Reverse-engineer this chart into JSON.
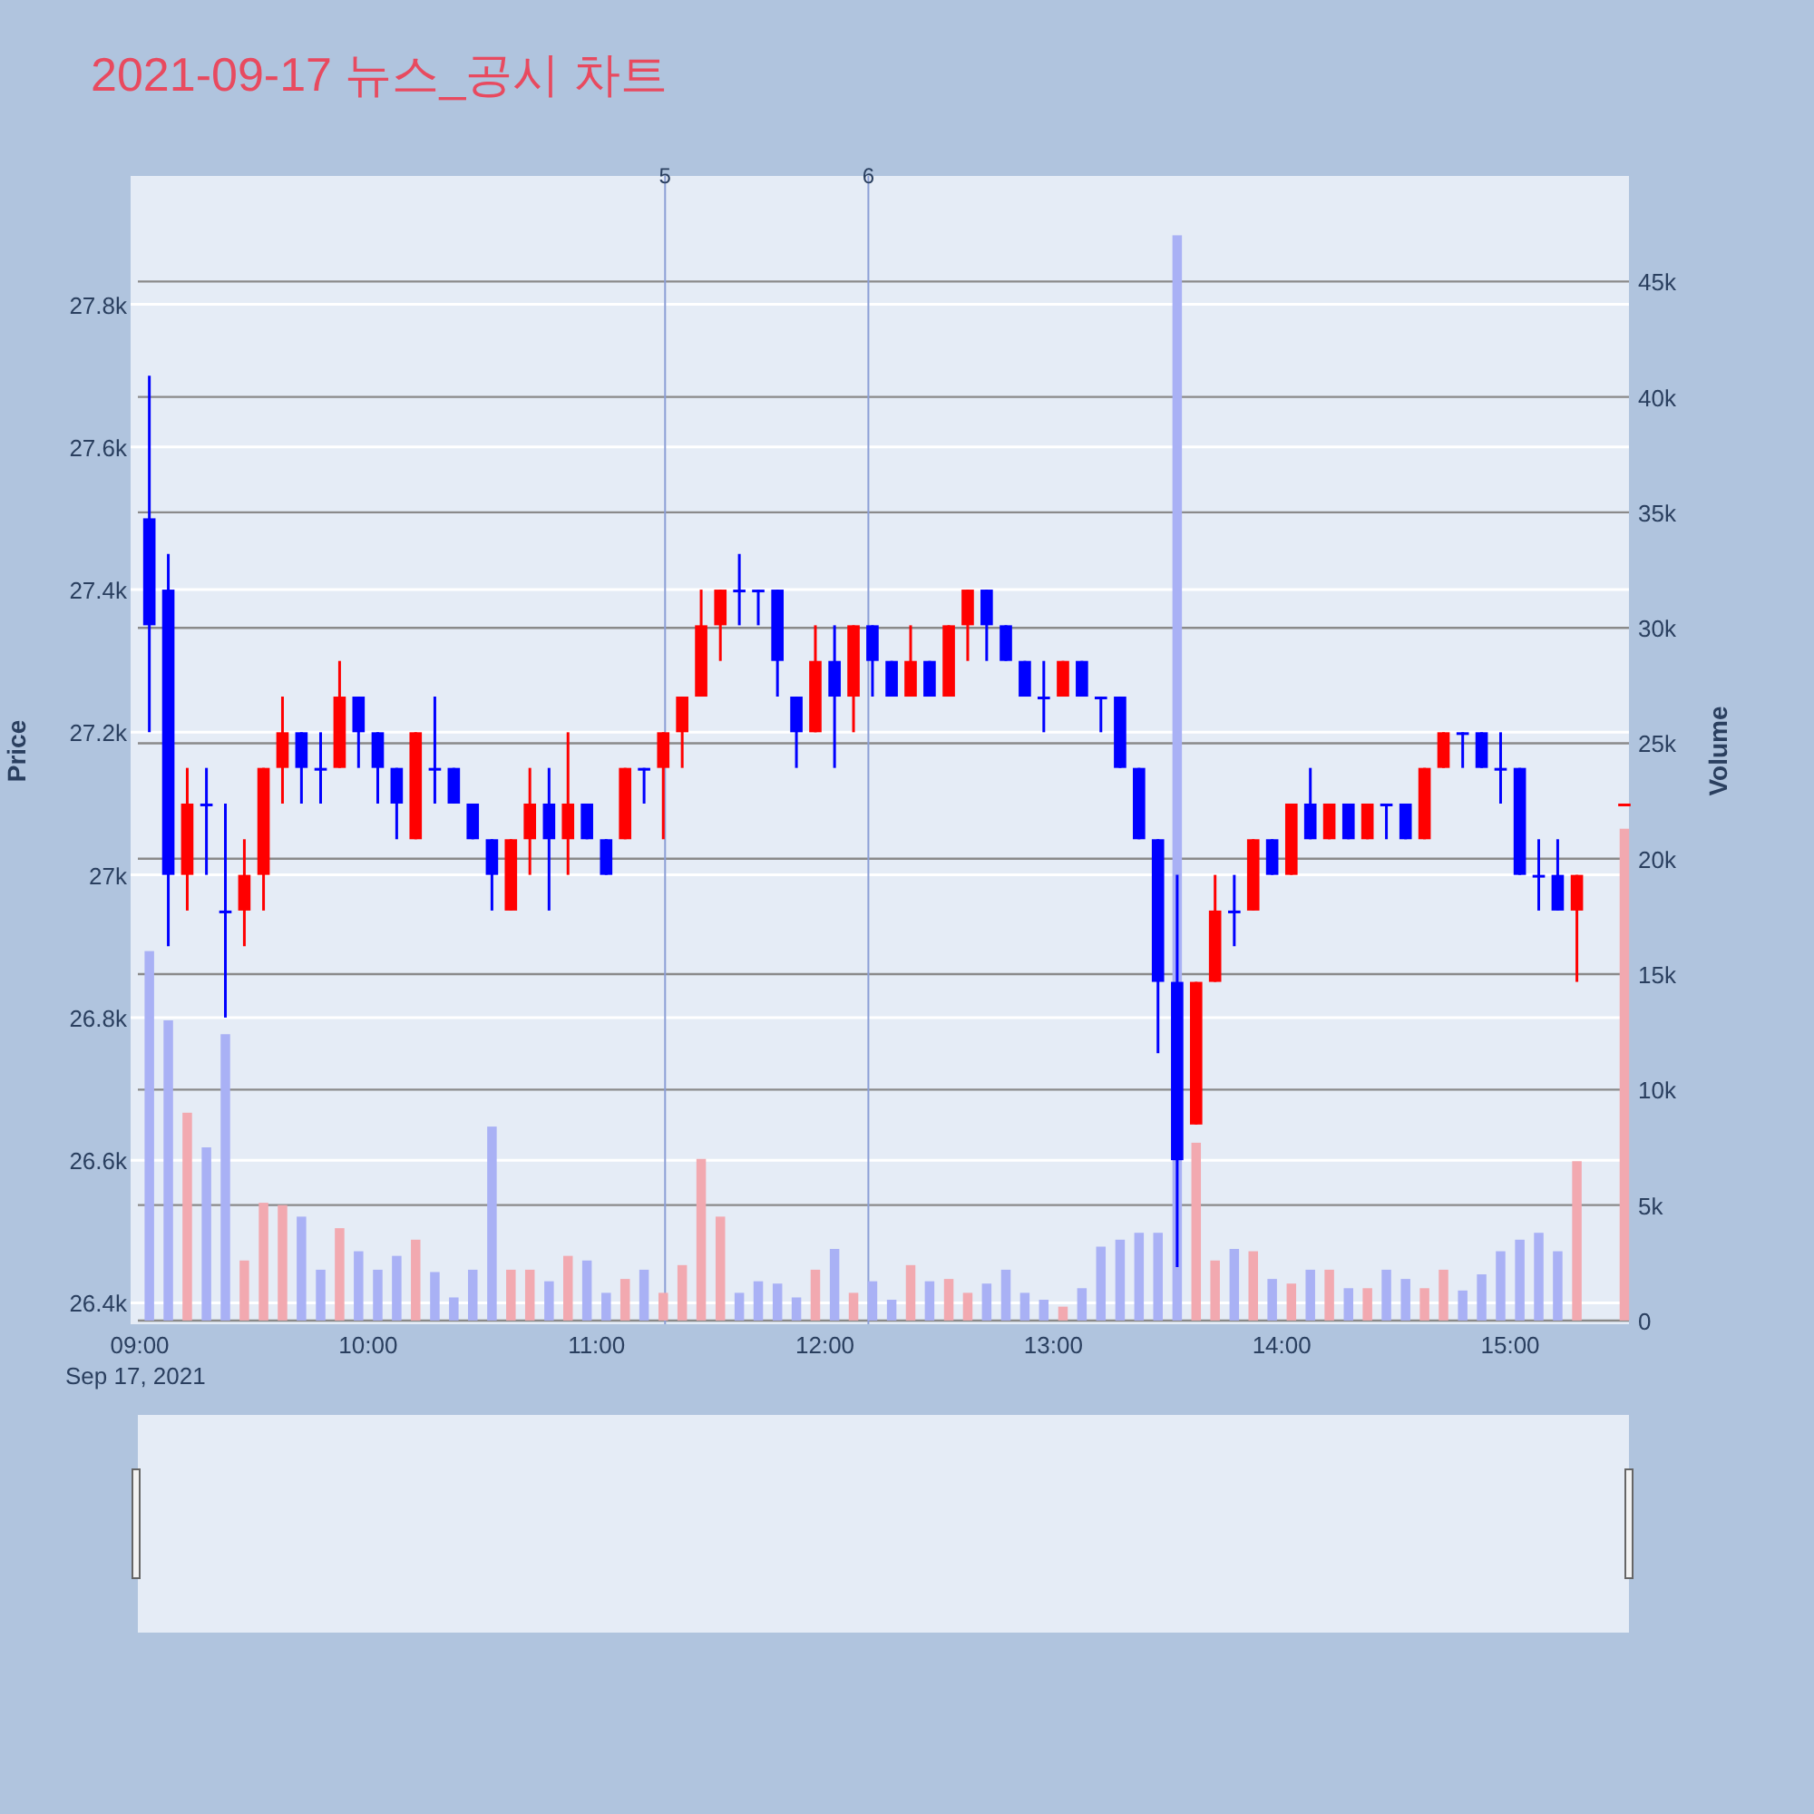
{
  "chart_data": {
    "type": "candlestick",
    "title": "2021-09-17 뉴스_공시 차트",
    "ylabel": "Price",
    "y2label": "Volume",
    "annotations": [
      "Sep 17, 2021",
      {
        "text": "5",
        "x": 11.3
      },
      {
        "text": "6",
        "x": 12.19
      }
    ],
    "x": [
      9.042,
      9.125,
      9.208,
      9.292,
      9.375,
      9.458,
      9.542,
      9.625,
      9.708,
      9.792,
      9.875,
      9.958,
      10.042,
      10.125,
      10.208,
      10.292,
      10.375,
      10.458,
      10.542,
      10.625,
      10.708,
      10.792,
      10.875,
      10.958,
      11.042,
      11.125,
      11.208,
      11.292,
      11.375,
      11.458,
      11.542,
      11.625,
      11.708,
      11.792,
      11.875,
      11.958,
      12.042,
      12.125,
      12.208,
      12.292,
      12.375,
      12.458,
      12.542,
      12.625,
      12.708,
      12.792,
      12.875,
      12.958,
      13.042,
      13.125,
      13.208,
      13.292,
      13.375,
      13.458,
      13.542,
      13.625,
      13.708,
      13.792,
      13.875,
      13.958,
      14.042,
      14.125,
      14.208,
      14.292,
      14.375,
      14.458,
      14.542,
      14.625,
      14.708,
      14.792,
      14.875,
      14.958,
      15.042,
      15.125,
      15.208,
      15.292,
      15.5
    ],
    "ohlc": [
      [
        27500,
        27700,
        27200,
        27350
      ],
      [
        27400,
        27450,
        26900,
        27000
      ],
      [
        27000,
        27150,
        26950,
        27100
      ],
      [
        27100,
        27150,
        27000,
        27100
      ],
      [
        26950,
        27100,
        26800,
        26950
      ],
      [
        26950,
        27050,
        26900,
        27000
      ],
      [
        27000,
        27150,
        26950,
        27150
      ],
      [
        27150,
        27250,
        27100,
        27200
      ],
      [
        27200,
        27200,
        27100,
        27150
      ],
      [
        27150,
        27200,
        27100,
        27150
      ],
      [
        27150,
        27300,
        27150,
        27250
      ],
      [
        27250,
        27250,
        27150,
        27200
      ],
      [
        27200,
        27200,
        27100,
        27150
      ],
      [
        27150,
        27150,
        27050,
        27100
      ],
      [
        27050,
        27200,
        27050,
        27200
      ],
      [
        27150,
        27250,
        27100,
        27150
      ],
      [
        27150,
        27150,
        27100,
        27100
      ],
      [
        27100,
        27100,
        27050,
        27050
      ],
      [
        27050,
        27050,
        26950,
        27000
      ],
      [
        26950,
        27050,
        26950,
        27050
      ],
      [
        27050,
        27150,
        27000,
        27100
      ],
      [
        27100,
        27150,
        26950,
        27050
      ],
      [
        27050,
        27200,
        27000,
        27100
      ],
      [
        27100,
        27100,
        27050,
        27050
      ],
      [
        27050,
        27050,
        27000,
        27000
      ],
      [
        27050,
        27150,
        27050,
        27150
      ],
      [
        27150,
        27150,
        27100,
        27150
      ],
      [
        27150,
        27200,
        27050,
        27200
      ],
      [
        27200,
        27250,
        27150,
        27250
      ],
      [
        27250,
        27400,
        27250,
        27350
      ],
      [
        27350,
        27400,
        27300,
        27400
      ],
      [
        27400,
        27450,
        27350,
        27400
      ],
      [
        27400,
        27400,
        27350,
        27400
      ],
      [
        27400,
        27400,
        27250,
        27300
      ],
      [
        27250,
        27250,
        27150,
        27200
      ],
      [
        27200,
        27350,
        27200,
        27300
      ],
      [
        27300,
        27350,
        27150,
        27250
      ],
      [
        27250,
        27350,
        27200,
        27350
      ],
      [
        27350,
        27350,
        27250,
        27300
      ],
      [
        27300,
        27300,
        27250,
        27250
      ],
      [
        27250,
        27350,
        27250,
        27300
      ],
      [
        27300,
        27300,
        27250,
        27250
      ],
      [
        27250,
        27350,
        27250,
        27350
      ],
      [
        27350,
        27400,
        27300,
        27400
      ],
      [
        27400,
        27400,
        27300,
        27350
      ],
      [
        27350,
        27350,
        27300,
        27300
      ],
      [
        27300,
        27300,
        27250,
        27250
      ],
      [
        27250,
        27300,
        27200,
        27250
      ],
      [
        27250,
        27300,
        27250,
        27300
      ],
      [
        27300,
        27300,
        27250,
        27250
      ],
      [
        27250,
        27250,
        27200,
        27250
      ],
      [
        27250,
        27250,
        27150,
        27150
      ],
      [
        27150,
        27150,
        27050,
        27050
      ],
      [
        27050,
        27050,
        26750,
        26850
      ],
      [
        26850,
        27000,
        26450,
        26600
      ],
      [
        26650,
        26850,
        26650,
        26850
      ],
      [
        26850,
        27000,
        26850,
        26950
      ],
      [
        26950,
        27000,
        26900,
        26950
      ],
      [
        26950,
        27050,
        26950,
        27050
      ],
      [
        27050,
        27050,
        27000,
        27000
      ],
      [
        27000,
        27100,
        27000,
        27100
      ],
      [
        27100,
        27150,
        27050,
        27050
      ],
      [
        27050,
        27100,
        27050,
        27100
      ],
      [
        27100,
        27100,
        27050,
        27050
      ],
      [
        27050,
        27100,
        27050,
        27100
      ],
      [
        27100,
        27100,
        27050,
        27100
      ],
      [
        27100,
        27100,
        27050,
        27050
      ],
      [
        27050,
        27150,
        27050,
        27150
      ],
      [
        27150,
        27200,
        27150,
        27200
      ],
      [
        27200,
        27200,
        27150,
        27200
      ],
      [
        27200,
        27200,
        27150,
        27150
      ],
      [
        27150,
        27200,
        27100,
        27150
      ],
      [
        27150,
        27150,
        27000,
        27000
      ],
      [
        27000,
        27050,
        26950,
        27000
      ],
      [
        27000,
        27050,
        26950,
        26950
      ],
      [
        26950,
        27000,
        26850,
        27000
      ],
      [
        27100,
        27100,
        27100,
        27100
      ]
    ],
    "colors": [
      "#0000ff",
      "#0000ff",
      "#ff0000",
      "#0000ff",
      "#0000ff",
      "#ff0000",
      "#ff0000",
      "#ff0000",
      "#0000ff",
      "#0000ff",
      "#ff0000",
      "#0000ff",
      "#0000ff",
      "#0000ff",
      "#ff0000",
      "#0000ff",
      "#0000ff",
      "#0000ff",
      "#0000ff",
      "#ff0000",
      "#ff0000",
      "#0000ff",
      "#ff0000",
      "#0000ff",
      "#0000ff",
      "#ff0000",
      "#0000ff",
      "#ff0000",
      "#ff0000",
      "#ff0000",
      "#ff0000",
      "#0000ff",
      "#0000ff",
      "#0000ff",
      "#0000ff",
      "#ff0000",
      "#0000ff",
      "#ff0000",
      "#0000ff",
      "#0000ff",
      "#ff0000",
      "#0000ff",
      "#ff0000",
      "#ff0000",
      "#0000ff",
      "#0000ff",
      "#0000ff",
      "#0000ff",
      "#ff0000",
      "#0000ff",
      "#0000ff",
      "#0000ff",
      "#0000ff",
      "#0000ff",
      "#0000ff",
      "#ff0000",
      "#ff0000",
      "#0000ff",
      "#ff0000",
      "#0000ff",
      "#ff0000",
      "#0000ff",
      "#ff0000",
      "#0000ff",
      "#ff0000",
      "#0000ff",
      "#0000ff",
      "#ff0000",
      "#ff0000",
      "#0000ff",
      "#0000ff",
      "#0000ff",
      "#0000ff",
      "#0000ff",
      "#0000ff",
      "#ff0000",
      "#ff0000"
    ],
    "series": [
      {
        "type": "bar",
        "axis": "y2",
        "values": [
          16000,
          13000,
          9000,
          7500,
          12400,
          2600,
          5100,
          5000,
          4500,
          2200,
          4000,
          3000,
          2200,
          2800,
          3500,
          2100,
          1000,
          2200,
          8400,
          2200,
          2200,
          1700,
          2800,
          2600,
          1200,
          1800,
          2200,
          1200,
          2400,
          7000,
          4500,
          1200,
          1700,
          1600,
          1000,
          2200,
          3100,
          1200,
          1700,
          900,
          2400,
          1700,
          1800,
          1200,
          1600,
          2200,
          1200,
          900,
          600,
          1400,
          3200,
          3500,
          3800,
          3800,
          47000,
          7700,
          2600,
          3100,
          3000,
          1800,
          1600,
          2200,
          2200,
          1400,
          1400,
          2200,
          1800,
          1400,
          2200,
          1300,
          2000,
          3000,
          3500,
          3800,
          3000,
          6900,
          21300
        ],
        "colors": [
          "#a9b1f5",
          "#a9b1f5",
          "#f2a9b0",
          "#a9b1f5",
          "#a9b1f5",
          "#f2a9b0",
          "#f2a9b0",
          "#f2a9b0",
          "#a9b1f5",
          "#a9b1f5",
          "#f2a9b0",
          "#a9b1f5",
          "#a9b1f5",
          "#a9b1f5",
          "#f2a9b0",
          "#a9b1f5",
          "#a9b1f5",
          "#a9b1f5",
          "#a9b1f5",
          "#f2a9b0",
          "#f2a9b0",
          "#a9b1f5",
          "#f2a9b0",
          "#a9b1f5",
          "#a9b1f5",
          "#f2a9b0",
          "#a9b1f5",
          "#f2a9b0",
          "#f2a9b0",
          "#f2a9b0",
          "#f2a9b0",
          "#a9b1f5",
          "#a9b1f5",
          "#a9b1f5",
          "#a9b1f5",
          "#f2a9b0",
          "#a9b1f5",
          "#f2a9b0",
          "#a9b1f5",
          "#a9b1f5",
          "#f2a9b0",
          "#a9b1f5",
          "#f2a9b0",
          "#f2a9b0",
          "#a9b1f5",
          "#a9b1f5",
          "#a9b1f5",
          "#a9b1f5",
          "#f2a9b0",
          "#a9b1f5",
          "#a9b1f5",
          "#a9b1f5",
          "#a9b1f5",
          "#a9b1f5",
          "#a9b1f5",
          "#f2a9b0",
          "#f2a9b0",
          "#a9b1f5",
          "#f2a9b0",
          "#a9b1f5",
          "#f2a9b0",
          "#a9b1f5",
          "#f2a9b0",
          "#a9b1f5",
          "#f2a9b0",
          "#a9b1f5",
          "#a9b1f5",
          "#f2a9b0",
          "#f2a9b0",
          "#a9b1f5",
          "#a9b1f5",
          "#a9b1f5",
          "#a9b1f5",
          "#a9b1f5",
          "#a9b1f5",
          "#f2a9b0",
          "#f2a9b0"
        ]
      }
    ],
    "xlim": [
      8.96,
      15.52
    ],
    "xticks": [
      {
        "value": 9,
        "label": "09:00"
      },
      {
        "value": 10,
        "label": "10:00"
      },
      {
        "value": 11,
        "label": "11:00"
      },
      {
        "value": 12,
        "label": "12:00"
      },
      {
        "value": 13,
        "label": "13:00"
      },
      {
        "value": 14,
        "label": "14:00"
      },
      {
        "value": 15,
        "label": "15:00"
      }
    ],
    "ylim": [
      26370,
      27980
    ],
    "yticks": [
      {
        "value": 26400,
        "label": "26.4k"
      },
      {
        "value": 26600,
        "label": "26.6k"
      },
      {
        "value": 26800,
        "label": "26.8k"
      },
      {
        "value": 27000,
        "label": "27k"
      },
      {
        "value": 27200,
        "label": "27.2k"
      },
      {
        "value": 27400,
        "label": "27.4k"
      },
      {
        "value": 27600,
        "label": "27.6k"
      },
      {
        "value": 27800,
        "label": "27.8k"
      }
    ],
    "y2lim": [
      -160,
      49570
    ],
    "y2ticks": [
      0,
      {
        "value": 5000,
        "label": "5k"
      },
      {
        "value": 10000,
        "label": "10k"
      },
      {
        "value": 15000,
        "label": "15k"
      },
      {
        "value": 20000,
        "label": "20k"
      },
      {
        "value": 25000,
        "label": "25k"
      },
      {
        "value": 30000,
        "label": "30k"
      },
      {
        "value": 35000,
        "label": "35k"
      },
      {
        "value": 40000,
        "label": "40k"
      },
      {
        "value": 45000,
        "label": "45k"
      }
    ],
    "ref_lines": [
      {
        "axis": "x",
        "value": 11.3,
        "color": "#8c9fd6"
      },
      {
        "axis": "x",
        "value": 12.19,
        "color": "#8c9fd6"
      }
    ],
    "grid": true
  }
}
